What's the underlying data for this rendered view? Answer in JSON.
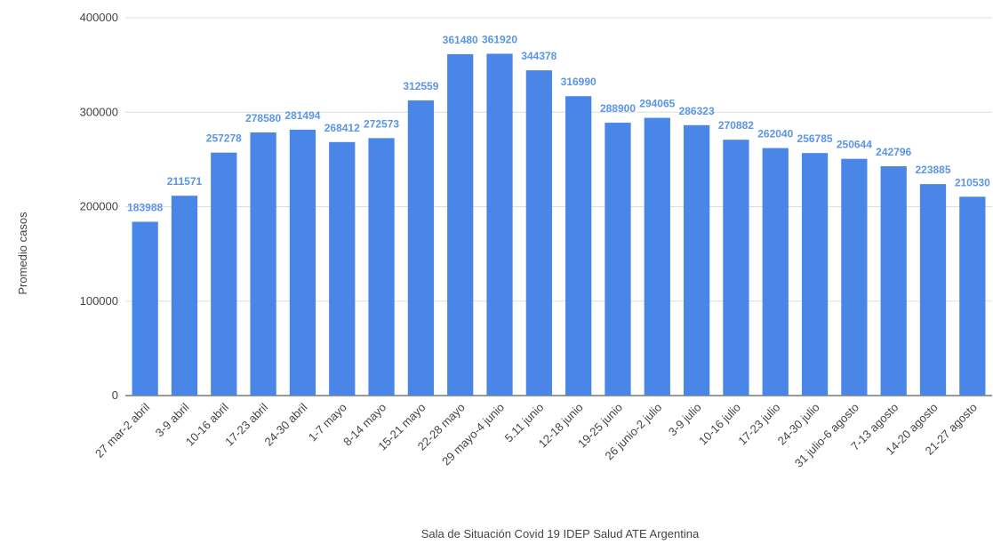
{
  "chart_data": {
    "type": "bar",
    "categories": [
      "27 mar-2 abril",
      "3-9 abril",
      "10-16 abril",
      "17-23 abril",
      "24-30 abril",
      "1-7 mayo",
      "8-14 mayo",
      "15-21 mayo",
      "22-28 mayo",
      "29 mayo-4 junio",
      "5.11 junio",
      "12-18 junio",
      "19-25 junio",
      "26 junio-2 julio",
      "3-9 julio",
      "10-16 julio",
      "17-23 julio",
      "24-30 julio",
      "31 julio-6 agosto",
      "7-13 agosto",
      "14-20 agosto",
      "21-27 agosto"
    ],
    "values": [
      183988,
      211571,
      257278,
      278580,
      281494,
      268412,
      272573,
      312559,
      361480,
      361920,
      344378,
      316990,
      288900,
      294065,
      286323,
      270882,
      262040,
      256785,
      250644,
      242796,
      223885,
      210530
    ],
    "color": "#4a86e8",
    "ylim": [
      0,
      400000
    ],
    "yticks": [
      0,
      100000,
      200000,
      300000,
      400000
    ],
    "grid": true,
    "y_label": "Promedio casos",
    "x_label": "Sala de Situación Covid 19 IDEP Salud ATE Argentina"
  }
}
